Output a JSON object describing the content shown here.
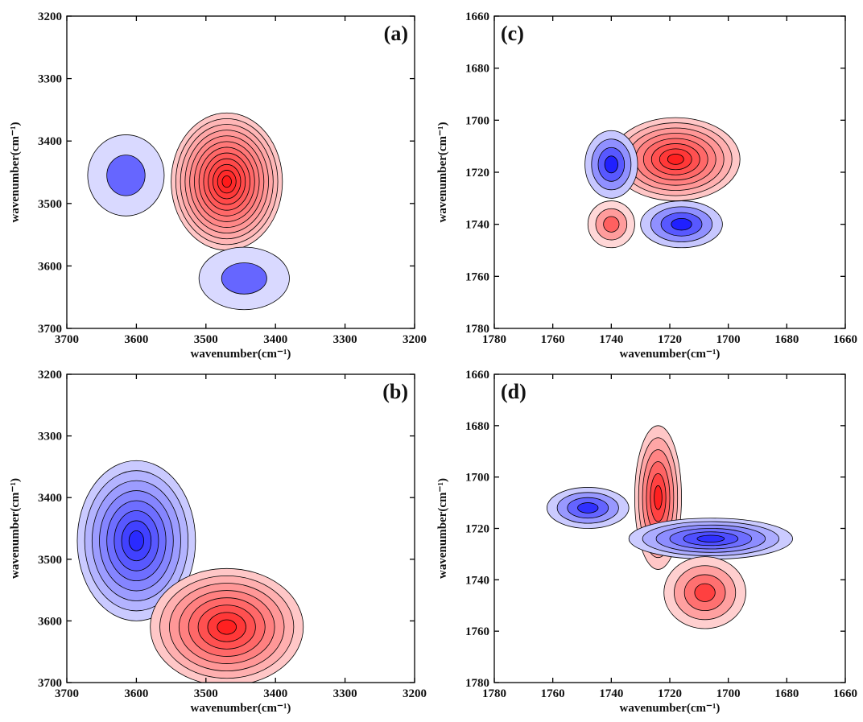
{
  "chart_data": [
    {
      "type": "contour",
      "panel_label": "(a)",
      "xlabel": "wavenumber(cm⁻¹)",
      "ylabel": "wavenumber(cm⁻¹)",
      "xlim": [
        3700,
        3200
      ],
      "ylim": [
        3700,
        3200
      ],
      "xticks": [
        3700,
        3600,
        3500,
        3400,
        3300,
        3200
      ],
      "yticks": [
        3700,
        3600,
        3500,
        3400,
        3300,
        3200
      ],
      "peaks": [
        {
          "x": 3470,
          "y": 3465,
          "rx": 80,
          "ry": 110,
          "levels": 12,
          "color": "#ff1a1a"
        },
        {
          "x": 3615,
          "y": 3455,
          "rx": 55,
          "ry": 65,
          "levels": 2,
          "color": "#6666ff"
        },
        {
          "x": 3445,
          "y": 3620,
          "rx": 65,
          "ry": 50,
          "levels": 2,
          "color": "#6666ff"
        }
      ]
    },
    {
      "type": "contour",
      "panel_label": "(b)",
      "xlabel": "wavenumber(cm⁻¹)",
      "ylabel": "wavenumber(cm⁻¹)",
      "xlim": [
        3700,
        3200
      ],
      "ylim": [
        3700,
        3200
      ],
      "xticks": [
        3700,
        3600,
        3500,
        3400,
        3300,
        3200
      ],
      "yticks": [
        3700,
        3600,
        3500,
        3400,
        3300,
        3200
      ],
      "peaks": [
        {
          "x": 3600,
          "y": 3470,
          "rx": 85,
          "ry": 130,
          "levels": 8,
          "color": "#2a2aff"
        },
        {
          "x": 3470,
          "y": 3610,
          "rx": 110,
          "ry": 95,
          "levels": 8,
          "color": "#ff2020"
        }
      ]
    },
    {
      "type": "contour",
      "panel_label": "(c)",
      "xlabel": "wavenumber(cm⁻¹)",
      "ylabel": "wavenumber(cm⁻¹)",
      "xlim": [
        1780,
        1660
      ],
      "ylim": [
        1780,
        1660
      ],
      "xticks": [
        1780,
        1760,
        1740,
        1720,
        1700,
        1680,
        1660
      ],
      "yticks": [
        1780,
        1760,
        1740,
        1720,
        1700,
        1680,
        1660
      ],
      "peaks": [
        {
          "x": 1718,
          "y": 1715,
          "rx": 22,
          "ry": 16,
          "levels": 8,
          "color": "#ff2020"
        },
        {
          "x": 1740,
          "y": 1717,
          "rx": 9,
          "ry": 13,
          "levels": 4,
          "color": "#2020ff"
        },
        {
          "x": 1740,
          "y": 1740,
          "rx": 8,
          "ry": 9,
          "levels": 3,
          "color": "#ff6060"
        },
        {
          "x": 1716,
          "y": 1740,
          "rx": 14,
          "ry": 9,
          "levels": 4,
          "color": "#2020ff"
        }
      ]
    },
    {
      "type": "contour",
      "panel_label": "(d)",
      "xlabel": "wavenumber(cm⁻¹)",
      "ylabel": "wavenumber(cm⁻¹)",
      "xlim": [
        1780,
        1660
      ],
      "ylim": [
        1780,
        1660
      ],
      "xticks": [
        1780,
        1760,
        1740,
        1720,
        1700,
        1680,
        1660
      ],
      "yticks": [
        1780,
        1760,
        1740,
        1720,
        1700,
        1680,
        1660
      ],
      "peaks": [
        {
          "x": 1724,
          "y": 1708,
          "rx": 8,
          "ry": 28,
          "levels": 6,
          "color": "#ff2020"
        },
        {
          "x": 1748,
          "y": 1712,
          "rx": 14,
          "ry": 8,
          "levels": 4,
          "color": "#3030ff"
        },
        {
          "x": 1706,
          "y": 1724,
          "rx": 28,
          "ry": 8,
          "levels": 6,
          "color": "#3030ff"
        },
        {
          "x": 1708,
          "y": 1745,
          "rx": 14,
          "ry": 14,
          "levels": 4,
          "color": "#ff4040"
        }
      ]
    }
  ]
}
